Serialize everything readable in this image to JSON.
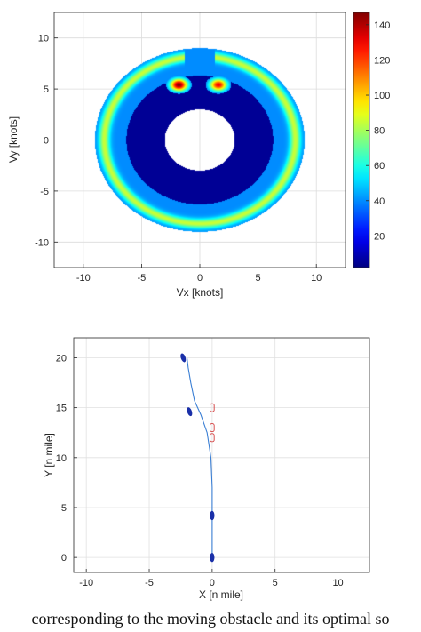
{
  "chart_data": [
    {
      "type": "heatmap",
      "title": "",
      "xlabel": "Vx [knots]",
      "ylabel": "Vy [knots]",
      "xlim": [
        -12.5,
        12.5
      ],
      "ylim": [
        -12.5,
        12.5
      ],
      "xticks": [
        -10,
        -5,
        0,
        5,
        10
      ],
      "yticks": [
        -10,
        -5,
        0,
        5,
        10
      ],
      "grid": true,
      "colormap": "jet",
      "colorbar": {
        "ticks": [
          20,
          40,
          60,
          80,
          100,
          120,
          140
        ],
        "range": [
          2,
          147
        ]
      },
      "regions": {
        "outer_radius": 9.0,
        "inner_hole_radius": 3.0,
        "inner_dark_radius": 6.3,
        "background_value": 40,
        "inner_value": 5,
        "ring_peak_value": 85,
        "ring_peak_radius": 8.2,
        "notch": {
          "x_half_width": 1.3,
          "y_min": 7.1
        },
        "hotspots": [
          {
            "x": -1.8,
            "y": 5.4,
            "peak": 147
          },
          {
            "x": 1.6,
            "y": 5.4,
            "peak": 130
          }
        ]
      }
    },
    {
      "type": "scatter",
      "title": "",
      "xlabel": "X [n mile]",
      "ylabel": "Y [n mile]",
      "xlim": [
        -11,
        12.5
      ],
      "ylim": [
        -1.5,
        22
      ],
      "xticks": [
        -10,
        -5,
        0,
        5,
        10
      ],
      "yticks": [
        0,
        5,
        10,
        15,
        20
      ],
      "grid": true,
      "series": [
        {
          "role": "ownship-path",
          "color": "#3b7fd4",
          "x": [
            0,
            0,
            0,
            0,
            -0.1,
            -0.4,
            -0.9,
            -1.4,
            -1.7,
            -1.9,
            -2.0
          ],
          "y": [
            0,
            2,
            4.2,
            7,
            10,
            12.5,
            14.3,
            15.7,
            17.5,
            19,
            20
          ]
        },
        {
          "role": "ownship-markers",
          "color": "#1a2fa8",
          "x": [
            0,
            0,
            -1.8,
            -2.3
          ],
          "y": [
            0,
            4.2,
            14.6,
            20
          ]
        },
        {
          "role": "obstacle-markers",
          "color": "#d23c3c",
          "x": [
            0,
            0,
            0
          ],
          "y": [
            15,
            13,
            12
          ]
        }
      ]
    }
  ],
  "caption": "corresponding to the moving obstacle and its optimal so"
}
